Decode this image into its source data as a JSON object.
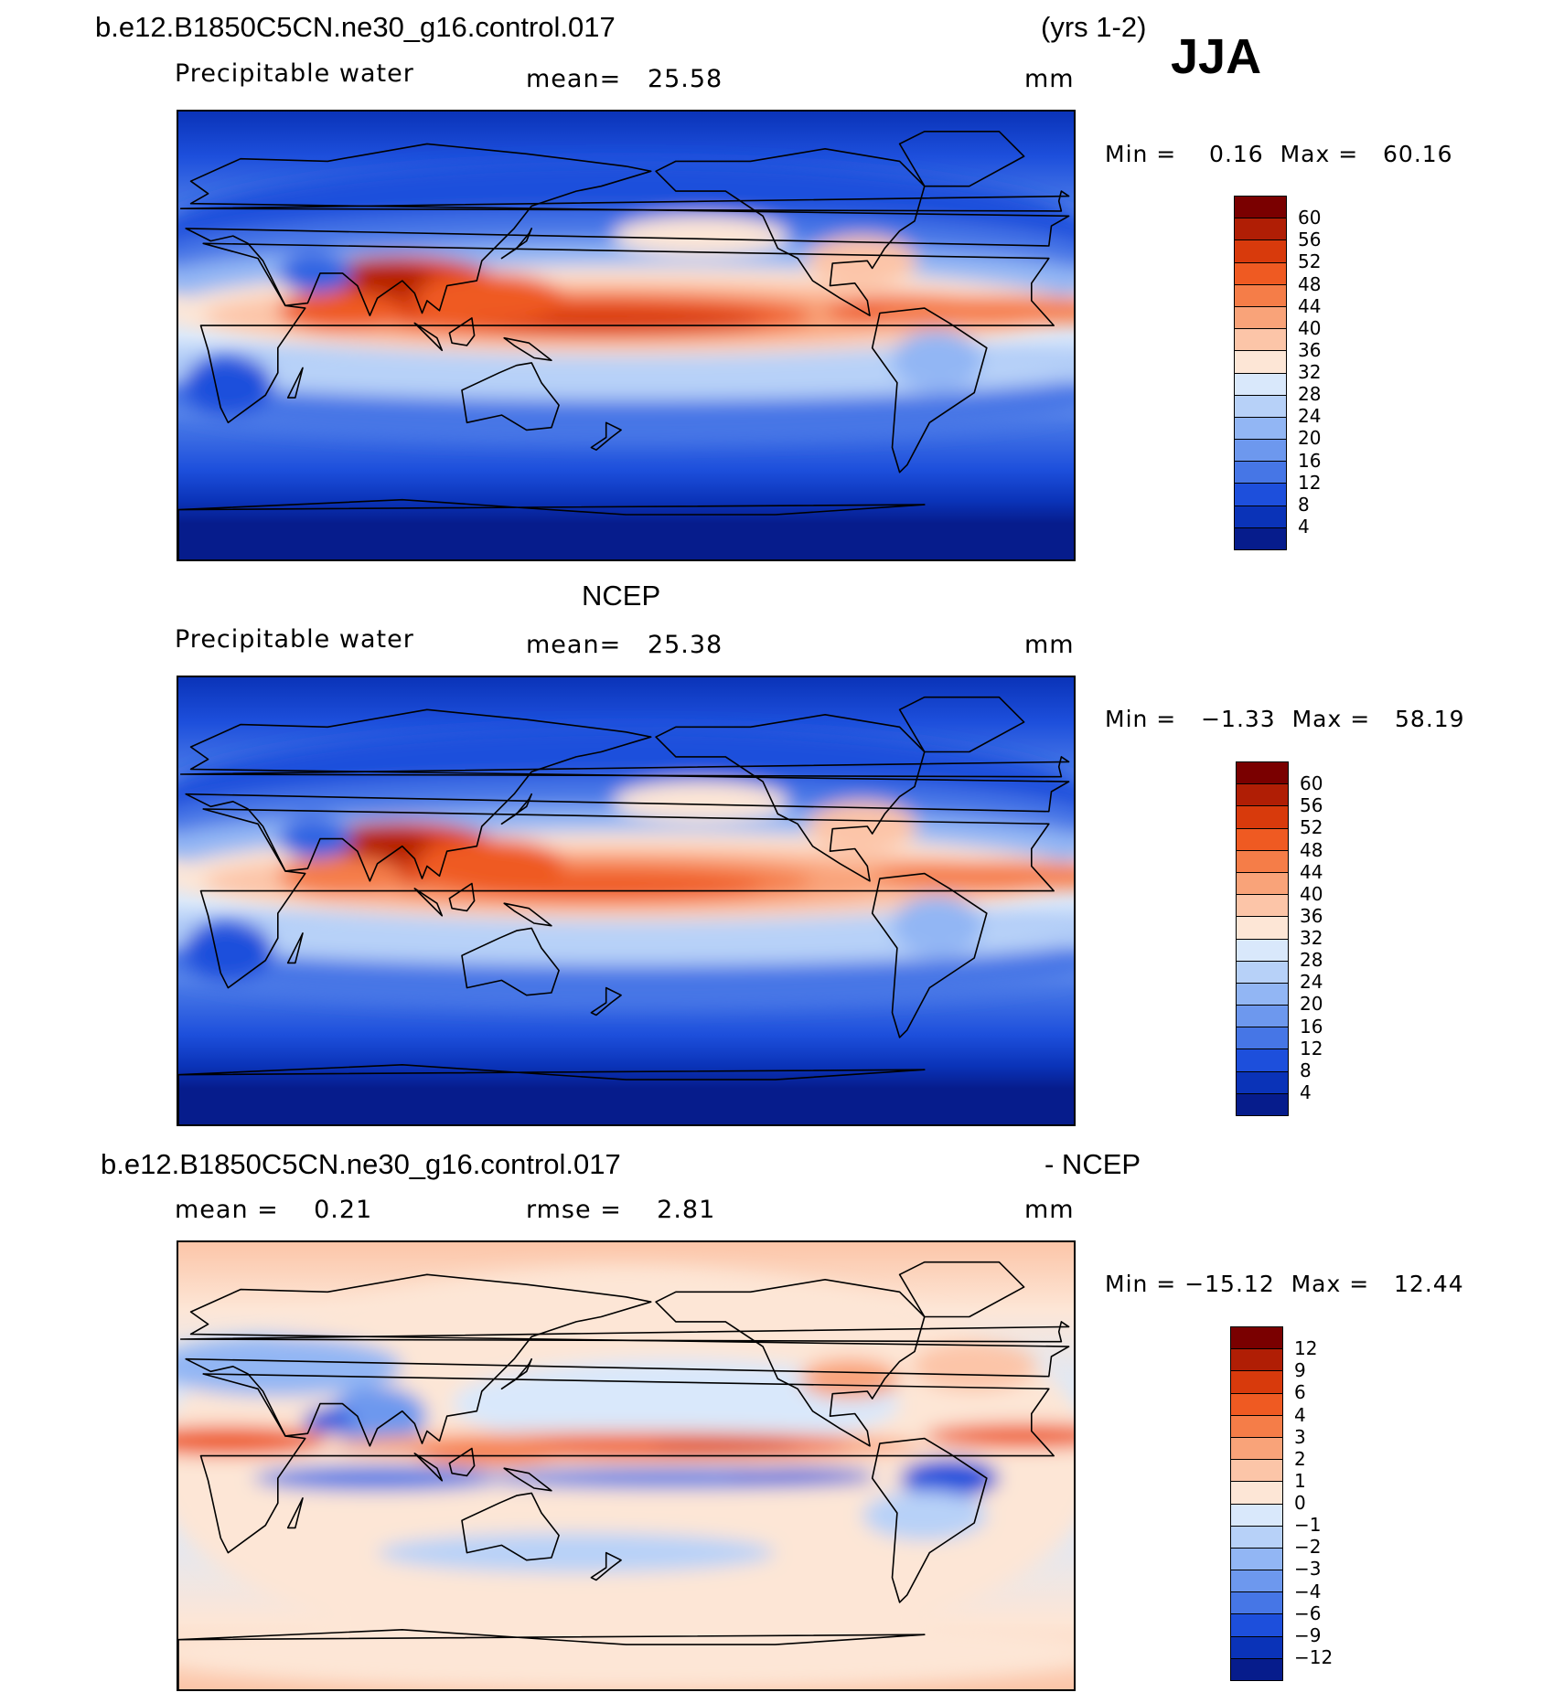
{
  "header": {
    "case_name": "b.e12.B1850C5CN.ne30_g16.control.017",
    "period": "(yrs 1-2)",
    "season": "JJA"
  },
  "panels": [
    {
      "id": "model",
      "heading": "",
      "variable": "Precipitable water",
      "stat1": "mean=   25.58",
      "stat2": "",
      "units": "mm",
      "minmax": "Min =    0.16  Max =   60.16",
      "colorbar": {
        "labels": [
          "60",
          "56",
          "52",
          "48",
          "44",
          "40",
          "36",
          "32",
          "28",
          "24",
          "20",
          "16",
          "12",
          "8",
          "4"
        ],
        "colors": [
          "#7a0000",
          "#b01e05",
          "#d83a0c",
          "#ef5a22",
          "#f57d48",
          "#f9a379",
          "#fcc5a8",
          "#fde6d6",
          "#d9e8fb",
          "#b7d1f8",
          "#92b6f4",
          "#6d98ee",
          "#4676e6",
          "#1d4fdc",
          "#0a33b8",
          "#061c8c"
        ]
      }
    },
    {
      "id": "obs",
      "heading": "NCEP",
      "variable": "Precipitable water",
      "stat1": "mean=   25.38",
      "stat2": "",
      "units": "mm",
      "minmax": "Min =   −1.33  Max =   58.19",
      "colorbar": {
        "labels": [
          "60",
          "56",
          "52",
          "48",
          "44",
          "40",
          "36",
          "32",
          "28",
          "24",
          "20",
          "16",
          "12",
          "8",
          "4"
        ],
        "colors": [
          "#7a0000",
          "#b01e05",
          "#d83a0c",
          "#ef5a22",
          "#f57d48",
          "#f9a379",
          "#fcc5a8",
          "#fde6d6",
          "#d9e8fb",
          "#b7d1f8",
          "#92b6f4",
          "#6d98ee",
          "#4676e6",
          "#1d4fdc",
          "#0a33b8",
          "#061c8c"
        ]
      }
    },
    {
      "id": "diff",
      "heading_left": "b.e12.B1850C5CN.ne30_g16.control.017",
      "heading_right": "- NCEP",
      "variable": "",
      "stat1": "mean =    0.21",
      "stat2": "rmse =    2.81",
      "units": "mm",
      "minmax": "Min = −15.12  Max =   12.44",
      "colorbar": {
        "labels": [
          "12",
          "9",
          "6",
          "4",
          "3",
          "2",
          "1",
          "0",
          "−1",
          "−2",
          "−3",
          "−4",
          "−6",
          "−9",
          "−12"
        ],
        "colors": [
          "#7a0000",
          "#b01e05",
          "#d83a0c",
          "#ef5a22",
          "#f57d48",
          "#f9a379",
          "#fcc5a8",
          "#fde6d6",
          "#d9e8fb",
          "#b7d1f8",
          "#92b6f4",
          "#6d98ee",
          "#4676e6",
          "#1d4fdc",
          "#0a33b8",
          "#061c8c"
        ]
      }
    }
  ]
}
